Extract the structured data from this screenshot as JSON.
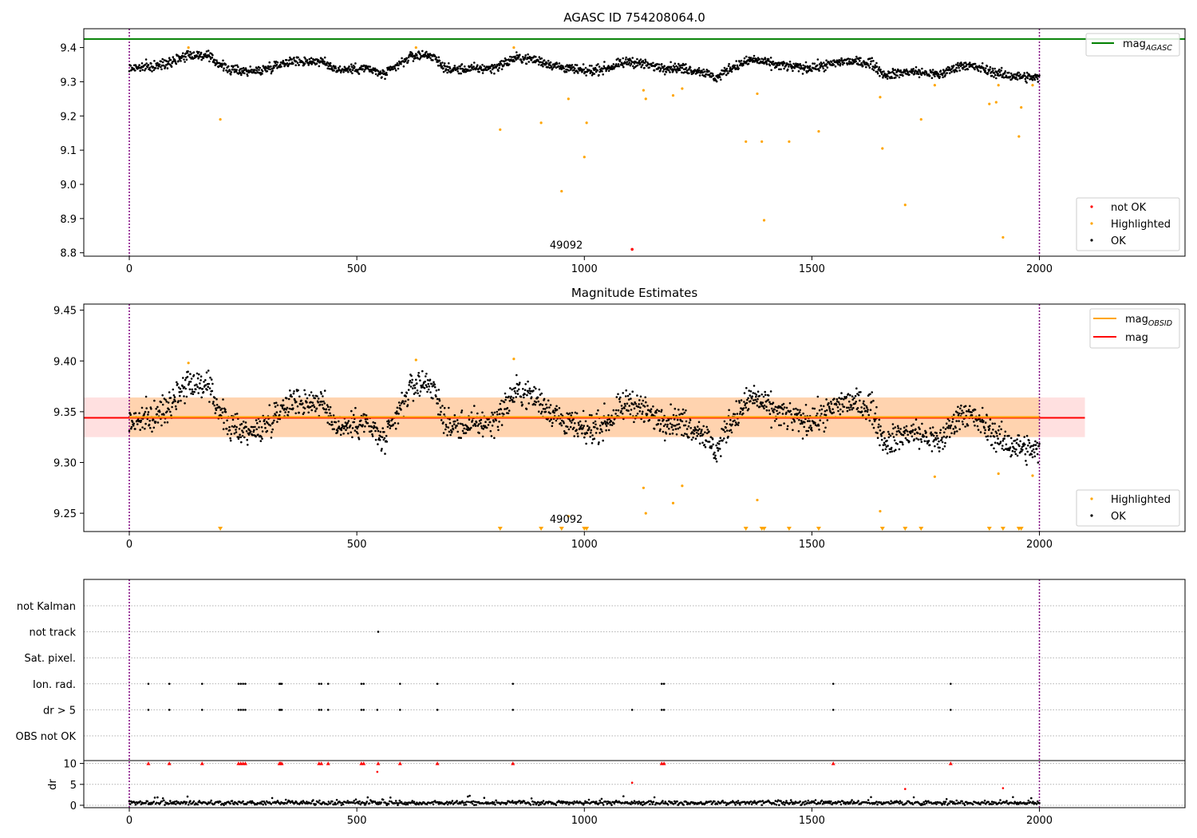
{
  "chart_data": [
    {
      "type": "scatter",
      "title": "AGASC ID 754208064.0",
      "xlim": [
        -100,
        2320
      ],
      "ylim": [
        8.79,
        9.455
      ],
      "x_ticks": [
        0,
        500,
        1000,
        1500,
        2000
      ],
      "x_tick_labels": [
        "0",
        "500",
        "1000",
        "1500",
        "2000"
      ],
      "y_ticks": [
        8.8,
        8.9,
        9.0,
        9.1,
        9.2,
        9.3,
        9.4
      ],
      "y_tick_labels": [
        "8.8",
        "8.9",
        "9.0",
        "9.1",
        "9.2",
        "9.3",
        "9.4"
      ],
      "obsid_bounds": [
        0,
        2000
      ],
      "obsid_label": {
        "text": "49092",
        "x": 1000,
        "y": 8.81
      },
      "mag_agasc": 9.425,
      "series": [
        {
          "name": "not OK",
          "color": "#ff0000",
          "x": [
            1105
          ],
          "y": [
            8.81
          ]
        },
        {
          "name": "Highlighted",
          "color": "#ffa500",
          "x": [
            130,
            200,
            630,
            815,
            845,
            905,
            950,
            965,
            1000,
            1005,
            1130,
            1135,
            1195,
            1215,
            1355,
            1380,
            1390,
            1395,
            1450,
            1515,
            1650,
            1655,
            1705,
            1740,
            1770,
            1890,
            1905,
            1910,
            1920,
            1955,
            1960,
            1985
          ],
          "y": [
            9.4,
            9.19,
            9.4,
            9.16,
            9.4,
            9.18,
            8.98,
            9.25,
            9.08,
            9.18,
            9.275,
            9.25,
            9.26,
            9.28,
            9.125,
            9.265,
            9.125,
            8.895,
            9.125,
            9.155,
            9.255,
            9.105,
            8.94,
            9.19,
            9.29,
            9.235,
            9.24,
            9.29,
            8.845,
            9.14,
            9.225,
            9.29
          ]
        },
        {
          "name": "OK",
          "color": "#000000",
          "profile_knots": [
            [
              0,
              9.34
            ],
            [
              60,
              9.345
            ],
            [
              130,
              9.38
            ],
            [
              170,
              9.375
            ],
            [
              220,
              9.335
            ],
            [
              280,
              9.33
            ],
            [
              350,
              9.36
            ],
            [
              420,
              9.36
            ],
            [
              460,
              9.335
            ],
            [
              520,
              9.34
            ],
            [
              560,
              9.32
            ],
            [
              620,
              9.375
            ],
            [
              660,
              9.38
            ],
            [
              700,
              9.335
            ],
            [
              800,
              9.34
            ],
            [
              850,
              9.37
            ],
            [
              890,
              9.365
            ],
            [
              940,
              9.345
            ],
            [
              1000,
              9.33
            ],
            [
              1050,
              9.34
            ],
            [
              1100,
              9.36
            ],
            [
              1150,
              9.345
            ],
            [
              1210,
              9.34
            ],
            [
              1260,
              9.33
            ],
            [
              1290,
              9.31
            ],
            [
              1320,
              9.34
            ],
            [
              1370,
              9.365
            ],
            [
              1420,
              9.35
            ],
            [
              1480,
              9.34
            ],
            [
              1520,
              9.345
            ],
            [
              1570,
              9.36
            ],
            [
              1630,
              9.355
            ],
            [
              1660,
              9.32
            ],
            [
              1720,
              9.33
            ],
            [
              1780,
              9.32
            ],
            [
              1830,
              9.35
            ],
            [
              1870,
              9.34
            ],
            [
              1920,
              9.32
            ],
            [
              2000,
              9.31
            ]
          ],
          "spread": 0.018
        }
      ],
      "legend_lower": [
        "not OK",
        "Highlighted",
        "OK"
      ],
      "legend_upper": [
        {
          "label": "mag",
          "subscript": "AGASC",
          "color": "#008000"
        }
      ]
    },
    {
      "type": "scatter",
      "title": "Magnitude Estimates",
      "xlim": [
        -100,
        2320
      ],
      "ylim": [
        9.232,
        9.456
      ],
      "x_ticks": [
        0,
        500,
        1000,
        1500,
        2000
      ],
      "x_tick_labels": [
        "0",
        "500",
        "1000",
        "1500",
        "2000"
      ],
      "y_ticks": [
        9.25,
        9.3,
        9.35,
        9.4,
        9.45
      ],
      "y_tick_labels": [
        "9.25",
        "9.30",
        "9.35",
        "9.40",
        "9.45"
      ],
      "obsid_bounds": [
        0,
        2000
      ],
      "obsid_label": {
        "text": "49092",
        "x": 1000,
        "y": 9.24
      },
      "mag": 9.344,
      "mag_band": [
        9.325,
        9.364
      ],
      "mag_obsid": 9.344,
      "mag_obsid_band": [
        9.325,
        9.364
      ],
      "mag_span": [
        -100,
        2100
      ],
      "mag_obsid_span": [
        0,
        2000
      ],
      "offscale_markers_x": [
        200,
        815,
        905,
        950,
        1000,
        1005,
        1355,
        1390,
        1395,
        1450,
        1515,
        1655,
        1705,
        1740,
        1890,
        1920,
        1955,
        1960
      ],
      "series": [
        {
          "name": "Highlighted",
          "color": "#ffa500",
          "x": [
            130,
            630,
            845,
            965,
            1130,
            1135,
            1195,
            1215,
            1380,
            1650,
            1770,
            1910,
            1985
          ],
          "y": [
            9.398,
            9.401,
            9.402,
            9.247,
            9.275,
            9.25,
            9.26,
            9.277,
            9.263,
            9.252,
            9.286,
            9.289,
            9.287
          ]
        },
        {
          "name": "OK",
          "color": "#000000",
          "profile_ref": "same as panel 1",
          "spread": 0.014
        }
      ],
      "legend_lower": [
        "Highlighted",
        "OK"
      ],
      "legend_upper": [
        {
          "label": "mag",
          "subscript": "OBSID",
          "color": "#ffa500"
        },
        {
          "label": "mag",
          "subscript": "",
          "color": "#ff0000"
        }
      ]
    },
    {
      "type": "scatter",
      "title": "",
      "xlim": [
        -100,
        2320
      ],
      "x_ticks": [
        0,
        500,
        1000,
        1500,
        2000
      ],
      "x_tick_labels": [
        "0",
        "500",
        "1000",
        "1500",
        "2000"
      ],
      "flag_rows": [
        "not Kalman",
        "not track",
        "Sat. pixel.",
        "Ion. rad.",
        "dr > 5",
        "OBS not OK"
      ],
      "flags": {
        "not Kalman": [],
        "not track": [
          547
        ],
        "Sat. pixel.": [],
        "Ion. rad.": [
          42,
          88,
          160,
          240,
          245,
          250,
          255,
          330,
          332,
          335,
          417,
          422,
          437,
          510,
          515,
          595,
          677,
          843,
          1170,
          1175,
          1547,
          1805
        ],
        "dr > 5": [
          42,
          88,
          160,
          240,
          245,
          250,
          255,
          330,
          332,
          335,
          417,
          422,
          437,
          510,
          515,
          545,
          595,
          677,
          843,
          1105,
          1170,
          1175,
          1547,
          1805
        ],
        "OBS not OK": []
      },
      "dr": {
        "ylabel": "dr",
        "ylim": [
          0,
          10.5
        ],
        "y_ticks": [
          0,
          5,
          10
        ],
        "y_tick_labels": [
          "0",
          "5",
          "10"
        ],
        "clipped_color": "#ff0000",
        "clipped_x": [
          42,
          88,
          160,
          240,
          245,
          250,
          255,
          330,
          332,
          335,
          417,
          422,
          437,
          510,
          515,
          547,
          595,
          677,
          843,
          1170,
          1175,
          1547,
          1805
        ],
        "red_points": [
          [
            545,
            8.0
          ],
          [
            1105,
            5.4
          ],
          [
            1705,
            3.9
          ],
          [
            1920,
            4.1
          ]
        ],
        "baseline_mean": 0.6
      }
    }
  ]
}
